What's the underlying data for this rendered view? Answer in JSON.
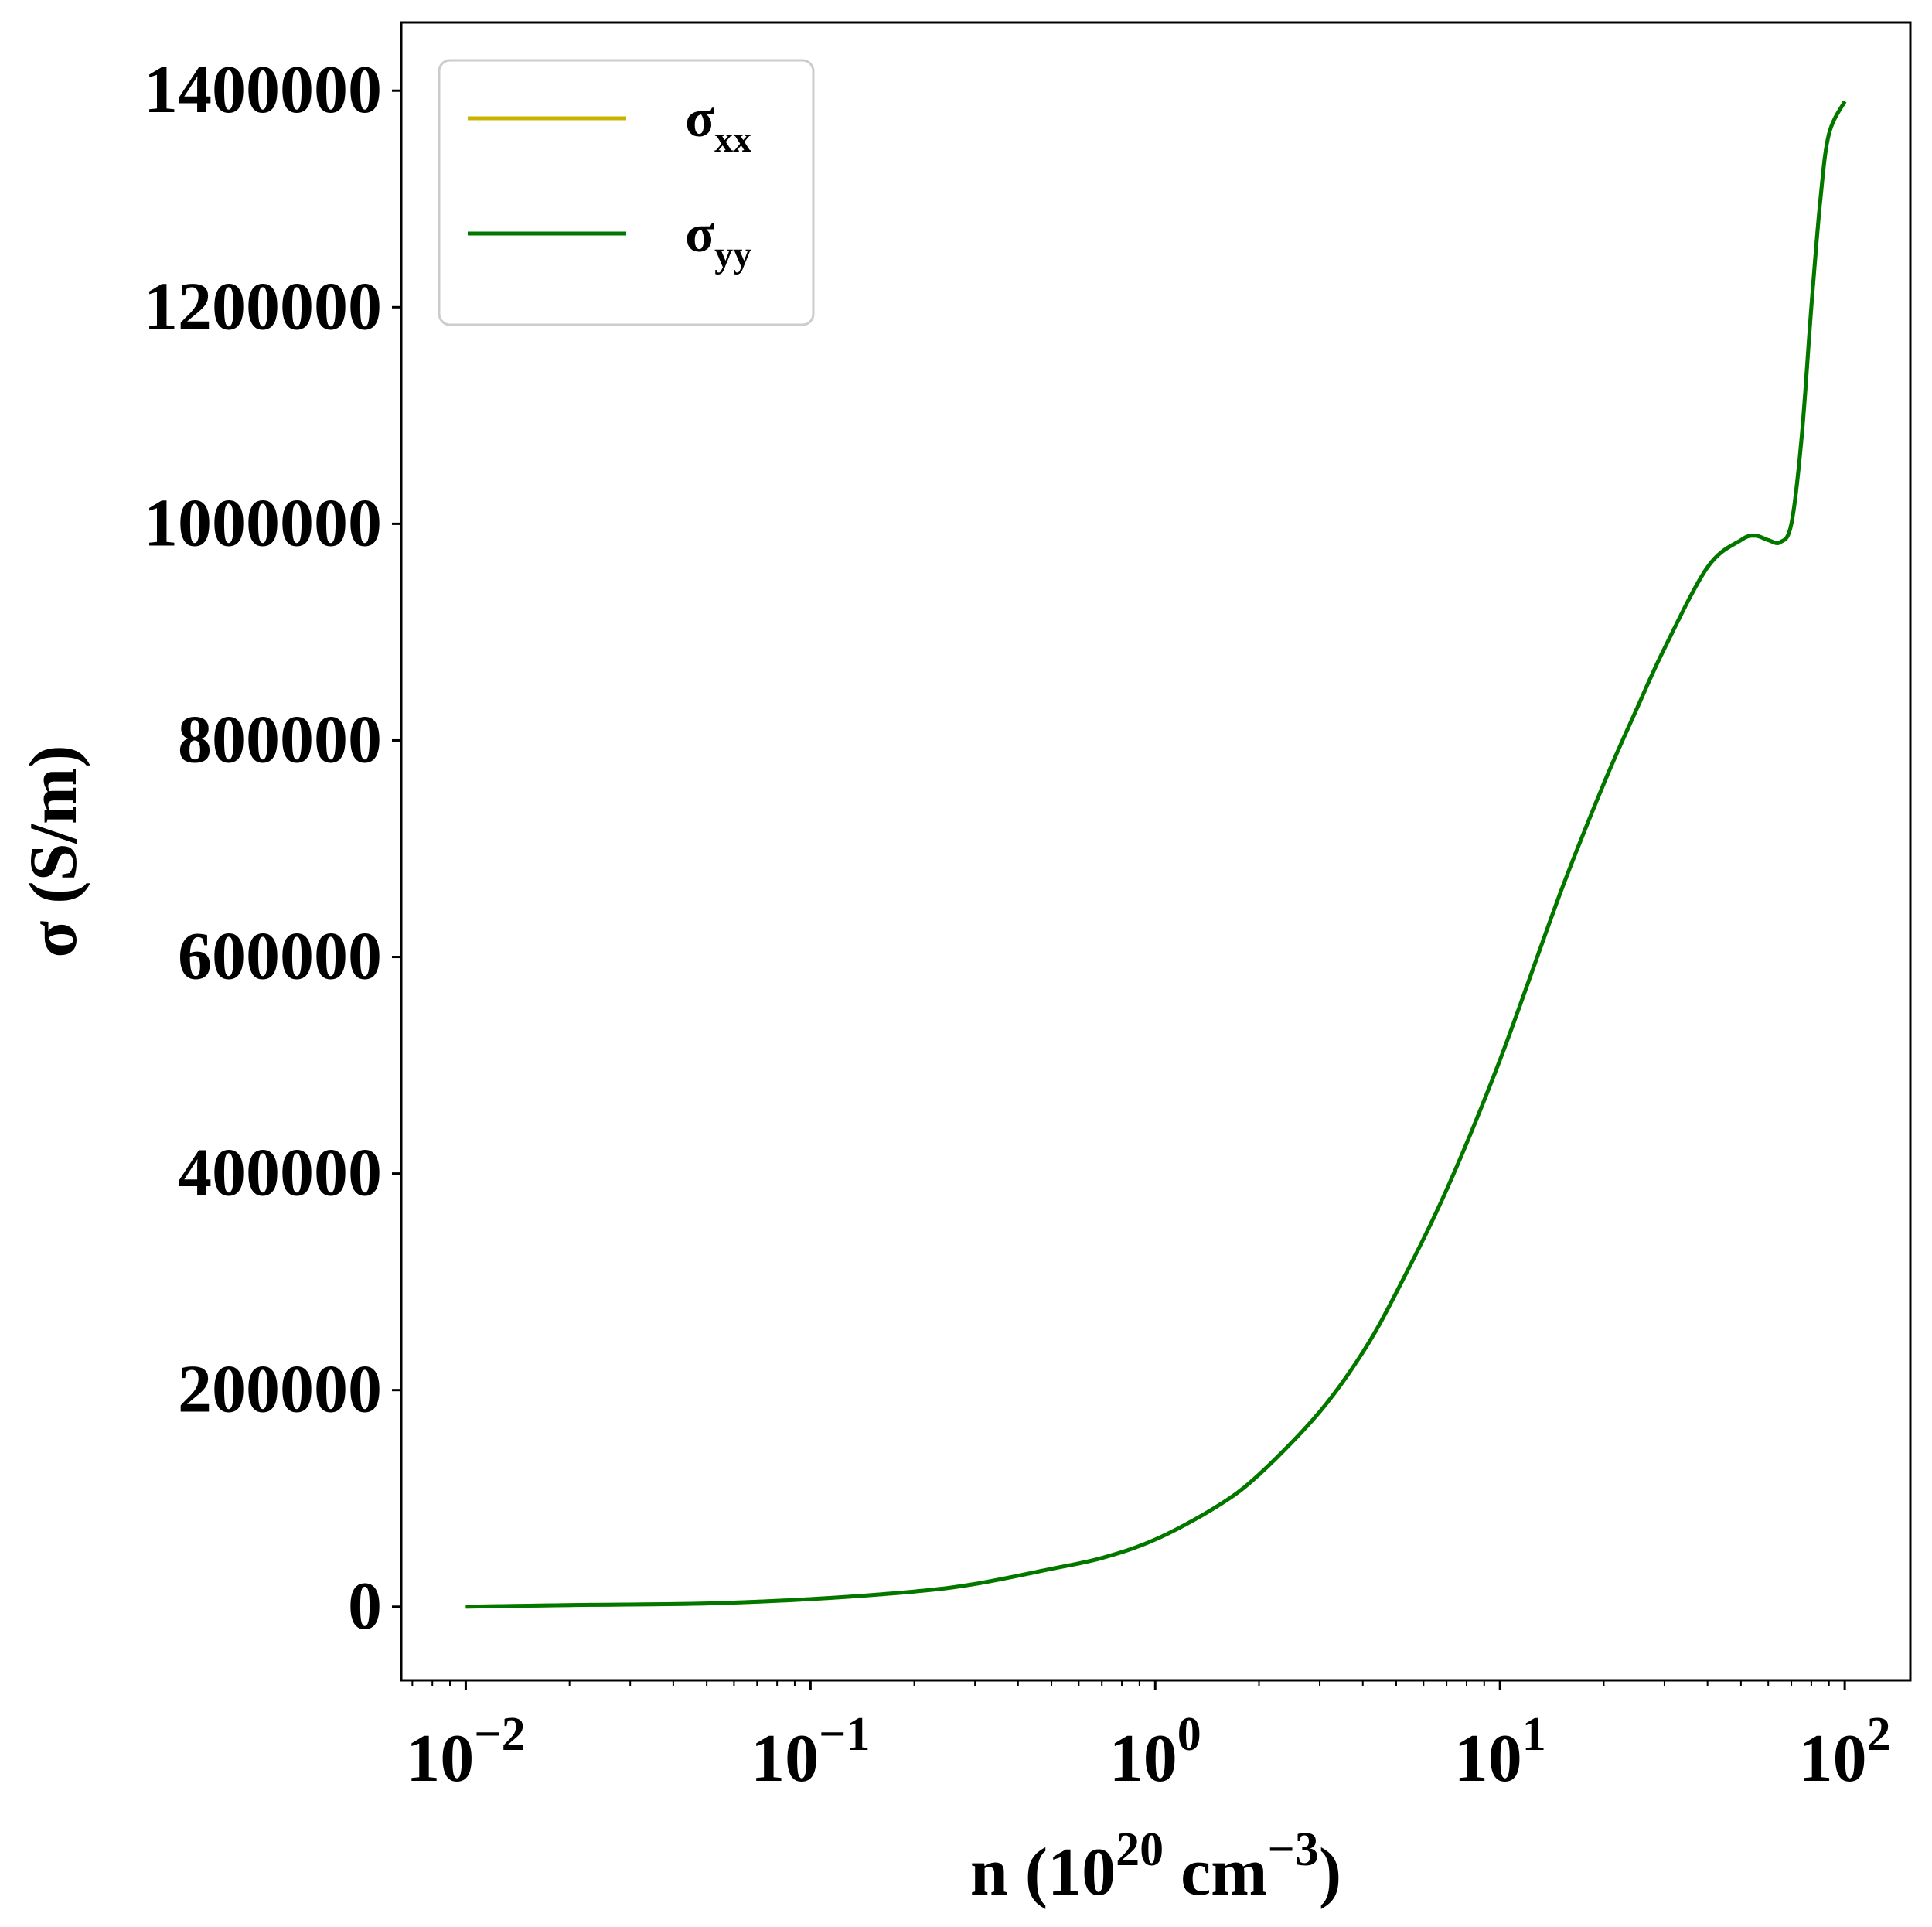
{
  "chart_data": {
    "type": "line",
    "xlabel": {
      "base": "n (10",
      "sup1": "20",
      "mid": " cm",
      "sup2": "−3",
      "end": ")"
    },
    "ylabel": "σ (S/m)",
    "xscale": "log",
    "xlim": [
      0.0065,
      155
    ],
    "ylim": [
      -68000,
      1463000
    ],
    "x_ticks": [
      {
        "value": 0.01,
        "base": "10",
        "exp": "−2"
      },
      {
        "value": 0.1,
        "base": "10",
        "exp": "−1"
      },
      {
        "value": 1,
        "base": "10",
        "exp": "0"
      },
      {
        "value": 10,
        "base": "10",
        "exp": "1"
      },
      {
        "value": 100,
        "base": "10",
        "exp": "2"
      }
    ],
    "y_ticks": [
      0,
      200000,
      400000,
      600000,
      800000,
      1000000,
      1200000,
      1400000
    ],
    "y_tick_labels": [
      "0",
      "200000",
      "400000",
      "600000",
      "800000",
      "1000000",
      "1200000",
      "1400000"
    ],
    "grid": false,
    "legend": {
      "position": "top-left"
    },
    "series": [
      {
        "name": "σxx",
        "label_main": "σ",
        "label_sub": "xx",
        "color": "#c8b400",
        "x": [
          0.01,
          0.02,
          0.05,
          0.1,
          0.2,
          0.3,
          0.5,
          0.7,
          1,
          1.5,
          2,
          3,
          4,
          5,
          7,
          10,
          15,
          20,
          25,
          30,
          40,
          50,
          55,
          60,
          65,
          70,
          75,
          80,
          85,
          90,
          100
        ],
        "y": [
          0,
          1500,
          3000,
          7000,
          14000,
          21000,
          35000,
          45000,
          62000,
          92000,
          122000,
          180000,
          235000,
          290000,
          385000,
          505000,
          660000,
          760000,
          830000,
          885000,
          960000,
          985000,
          989000,
          985000,
          983000,
          1000000,
          1080000,
          1200000,
          1300000,
          1360000,
          1390000
        ]
      },
      {
        "name": "σyy",
        "label_main": "σ",
        "label_sub": "yy",
        "color": "#007800",
        "x": [
          0.01,
          0.02,
          0.05,
          0.1,
          0.2,
          0.3,
          0.5,
          0.7,
          1,
          1.5,
          2,
          3,
          4,
          5,
          7,
          10,
          15,
          20,
          25,
          30,
          40,
          50,
          55,
          60,
          65,
          70,
          75,
          80,
          85,
          90,
          100
        ],
        "y": [
          0,
          1500,
          3000,
          7000,
          14000,
          21000,
          35000,
          45000,
          62000,
          92000,
          122000,
          180000,
          235000,
          290000,
          385000,
          505000,
          660000,
          760000,
          830000,
          885000,
          960000,
          985000,
          989000,
          985000,
          983000,
          1000000,
          1080000,
          1200000,
          1300000,
          1360000,
          1390000
        ]
      }
    ]
  }
}
